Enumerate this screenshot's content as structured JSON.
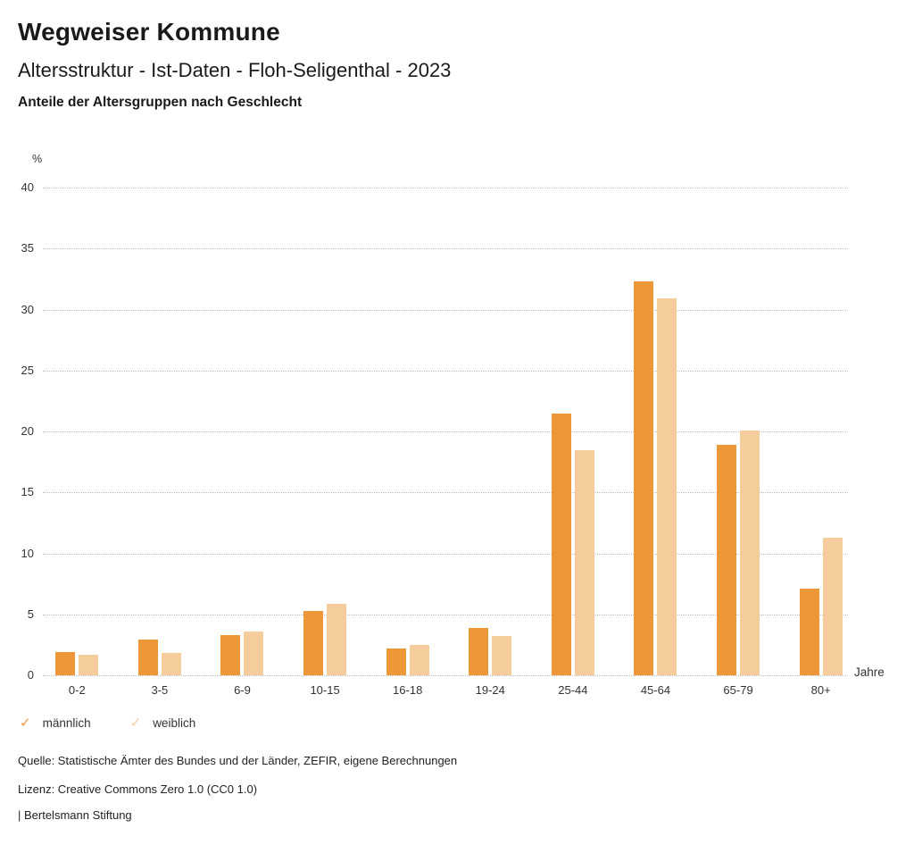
{
  "header": {
    "title": "Wegweiser Kommune",
    "subtitle": "Altersstruktur - Ist-Daten - Floh-Seligenthal - 2023",
    "section_title": "Anteile der Altersgruppen nach Geschlecht"
  },
  "chart_data": {
    "type": "bar",
    "title": "Anteile der Altersgruppen nach Geschlecht",
    "unit": "%",
    "x_unit": "Jahre",
    "categories": [
      "0-2",
      "3-5",
      "6-9",
      "10-15",
      "16-18",
      "19-24",
      "25-44",
      "45-64",
      "65-79",
      "80+"
    ],
    "series": [
      {
        "name": "männlich",
        "color": "#EC9838",
        "values": [
          1.9,
          2.9,
          3.3,
          5.3,
          2.2,
          3.9,
          21.5,
          32.3,
          18.9,
          7.1
        ]
      },
      {
        "name": "weiblich",
        "color": "#F5CC9B",
        "values": [
          1.7,
          1.8,
          3.6,
          5.9,
          2.5,
          3.2,
          18.5,
          30.9,
          20.1,
          11.3
        ]
      }
    ],
    "ylim": [
      0,
      40
    ],
    "ytick_step": 5,
    "grid": "horizontal-dotted",
    "legend_position": "bottom-left"
  },
  "legend": {
    "icon": "check",
    "items": [
      {
        "label": "männlich",
        "color": "#EC9838"
      },
      {
        "label": "weiblich",
        "color": "#F5CC9B"
      }
    ]
  },
  "footer": {
    "source": "Quelle: Statistische Ämter des Bundes und der Länder, ZEFIR, eigene Berechnungen",
    "license": "Lizenz: Creative Commons Zero 1.0 (CC0 1.0)",
    "attribution": "| Bertelsmann Stiftung"
  }
}
